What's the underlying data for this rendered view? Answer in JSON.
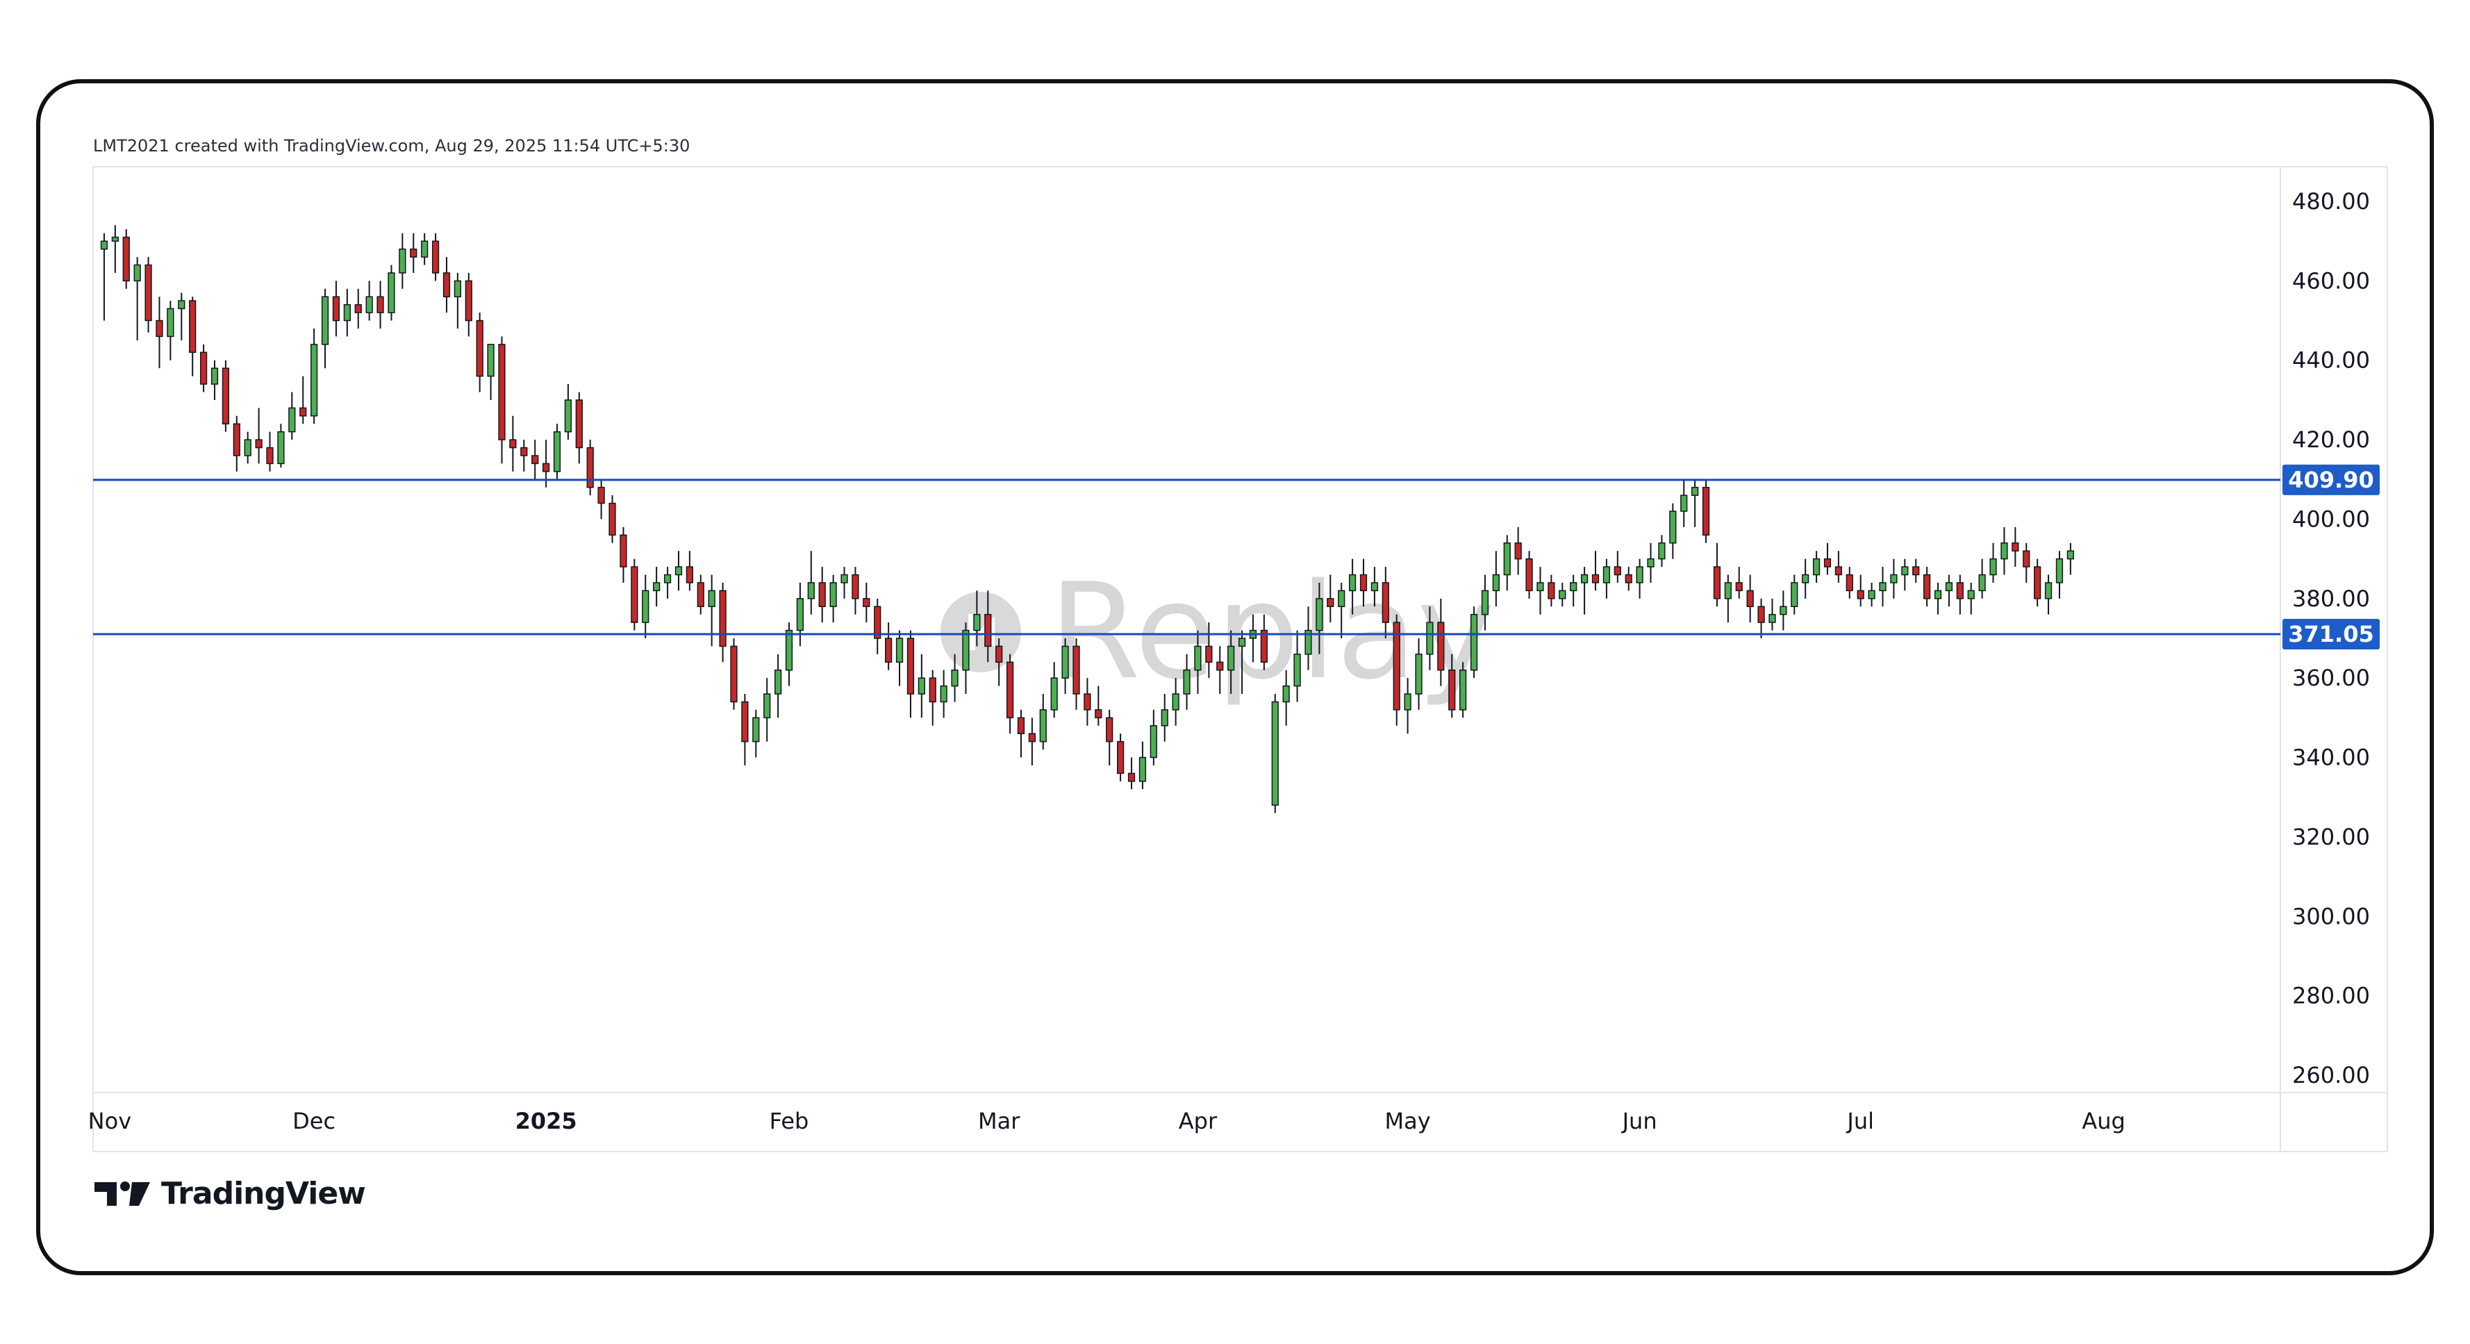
{
  "caption": "LMT2021 created with TradingView.com, Aug 29, 2025 11:54 UTC+5:30",
  "brand": {
    "name": "TradingView",
    "icon": "tradingview-logo-icon"
  },
  "watermark": {
    "text": "Replay",
    "icon": "replay-icon"
  },
  "chart_data": {
    "type": "candlestick",
    "symbol": "LMT",
    "ylim": [
      255,
      485
    ],
    "y_ticks": [
      "480.00",
      "460.00",
      "440.00",
      "420.00",
      "400.00",
      "380.00",
      "360.00",
      "340.00",
      "320.00",
      "300.00",
      "280.00",
      "260.00"
    ],
    "y_tick_values": [
      480,
      460,
      440,
      420,
      400,
      380,
      360,
      340,
      320,
      300,
      280,
      260
    ],
    "x_ticks": [
      {
        "label": "Nov",
        "index": 0.5,
        "bold": false
      },
      {
        "label": "Dec",
        "index": 19,
        "bold": false
      },
      {
        "label": "2025",
        "index": 40,
        "bold": true
      },
      {
        "label": "Feb",
        "index": 62,
        "bold": false
      },
      {
        "label": "Mar",
        "index": 81,
        "bold": false
      },
      {
        "label": "Apr",
        "index": 99,
        "bold": false
      },
      {
        "label": "May",
        "index": 118,
        "bold": false
      },
      {
        "label": "Jun",
        "index": 139,
        "bold": false
      },
      {
        "label": "Jul",
        "index": 159,
        "bold": false
      },
      {
        "label": "Aug",
        "index": 181,
        "bold": false
      }
    ],
    "x_slots": 198,
    "levels": [
      {
        "value": 409.9,
        "label": "409.90"
      },
      {
        "value": 371.05,
        "label": "371.05"
      }
    ],
    "up_color": "#4caf50",
    "down_color": "#c62828",
    "wick_color": "#131722",
    "level_color": "#1848b8",
    "label_bg": "#1e5cc8",
    "candles": [
      [
        468,
        472,
        450,
        470
      ],
      [
        470,
        474,
        462,
        471
      ],
      [
        471,
        473,
        458,
        460
      ],
      [
        460,
        466,
        445,
        464
      ],
      [
        464,
        466,
        447,
        450
      ],
      [
        450,
        456,
        438,
        446
      ],
      [
        446,
        455,
        440,
        453
      ],
      [
        453,
        457,
        445,
        455
      ],
      [
        455,
        456,
        436,
        442
      ],
      [
        442,
        444,
        432,
        434
      ],
      [
        434,
        440,
        430,
        438
      ],
      [
        438,
        440,
        422,
        424
      ],
      [
        424,
        426,
        412,
        416
      ],
      [
        416,
        422,
        414,
        420
      ],
      [
        420,
        428,
        414,
        418
      ],
      [
        418,
        422,
        412,
        414
      ],
      [
        414,
        424,
        413,
        422
      ],
      [
        422,
        432,
        420,
        428
      ],
      [
        428,
        436,
        424,
        426
      ],
      [
        426,
        448,
        424,
        444
      ],
      [
        444,
        458,
        438,
        456
      ],
      [
        456,
        460,
        446,
        450
      ],
      [
        450,
        458,
        446,
        454
      ],
      [
        454,
        458,
        448,
        452
      ],
      [
        452,
        460,
        450,
        456
      ],
      [
        456,
        460,
        448,
        452
      ],
      [
        452,
        464,
        450,
        462
      ],
      [
        462,
        472,
        458,
        468
      ],
      [
        468,
        472,
        462,
        466
      ],
      [
        466,
        472,
        464,
        470
      ],
      [
        470,
        472,
        460,
        462
      ],
      [
        462,
        466,
        452,
        456
      ],
      [
        456,
        462,
        448,
        460
      ],
      [
        460,
        462,
        446,
        450
      ],
      [
        450,
        452,
        432,
        436
      ],
      [
        436,
        444,
        430,
        444
      ],
      [
        444,
        446,
        414,
        420
      ],
      [
        420,
        426,
        412,
        418
      ],
      [
        418,
        420,
        412,
        416
      ],
      [
        416,
        420,
        410,
        414
      ],
      [
        414,
        420,
        408,
        412
      ],
      [
        412,
        424,
        410,
        422
      ],
      [
        422,
        434,
        420,
        430
      ],
      [
        430,
        432,
        414,
        418
      ],
      [
        418,
        420,
        406,
        408
      ],
      [
        408,
        410,
        400,
        404
      ],
      [
        404,
        406,
        394,
        396
      ],
      [
        396,
        398,
        384,
        388
      ],
      [
        388,
        390,
        372,
        374
      ],
      [
        374,
        386,
        370,
        382
      ],
      [
        382,
        388,
        378,
        384
      ],
      [
        384,
        388,
        380,
        386
      ],
      [
        386,
        392,
        382,
        388
      ],
      [
        388,
        392,
        382,
        384
      ],
      [
        384,
        386,
        376,
        378
      ],
      [
        378,
        386,
        368,
        382
      ],
      [
        382,
        384,
        364,
        368
      ],
      [
        368,
        370,
        352,
        354
      ],
      [
        354,
        356,
        338,
        344
      ],
      [
        344,
        352,
        340,
        350
      ],
      [
        350,
        360,
        344,
        356
      ],
      [
        356,
        366,
        350,
        362
      ],
      [
        362,
        374,
        358,
        372
      ],
      [
        372,
        384,
        368,
        380
      ],
      [
        380,
        392,
        376,
        384
      ],
      [
        384,
        388,
        374,
        378
      ],
      [
        378,
        386,
        374,
        384
      ],
      [
        384,
        388,
        380,
        386
      ],
      [
        386,
        388,
        376,
        380
      ],
      [
        380,
        384,
        374,
        378
      ],
      [
        378,
        380,
        366,
        370
      ],
      [
        370,
        374,
        362,
        364
      ],
      [
        364,
        372,
        358,
        370
      ],
      [
        370,
        372,
        350,
        356
      ],
      [
        356,
        366,
        350,
        360
      ],
      [
        360,
        362,
        348,
        354
      ],
      [
        354,
        362,
        350,
        358
      ],
      [
        358,
        366,
        354,
        362
      ],
      [
        362,
        374,
        356,
        372
      ],
      [
        372,
        382,
        368,
        376
      ],
      [
        376,
        382,
        364,
        368
      ],
      [
        368,
        370,
        358,
        364
      ],
      [
        364,
        366,
        346,
        350
      ],
      [
        350,
        352,
        340,
        346
      ],
      [
        346,
        350,
        338,
        344
      ],
      [
        344,
        356,
        342,
        352
      ],
      [
        352,
        364,
        350,
        360
      ],
      [
        360,
        370,
        356,
        368
      ],
      [
        368,
        370,
        352,
        356
      ],
      [
        356,
        360,
        348,
        352
      ],
      [
        352,
        358,
        348,
        350
      ],
      [
        350,
        352,
        338,
        344
      ],
      [
        344,
        346,
        334,
        336
      ],
      [
        336,
        340,
        332,
        334
      ],
      [
        334,
        344,
        332,
        340
      ],
      [
        340,
        352,
        338,
        348
      ],
      [
        348,
        356,
        344,
        352
      ],
      [
        352,
        360,
        348,
        356
      ],
      [
        356,
        366,
        352,
        362
      ],
      [
        362,
        372,
        356,
        368
      ],
      [
        368,
        374,
        360,
        364
      ],
      [
        364,
        368,
        356,
        362
      ],
      [
        362,
        372,
        356,
        368
      ],
      [
        368,
        372,
        356,
        370
      ],
      [
        370,
        376,
        364,
        372
      ],
      [
        372,
        376,
        362,
        364
      ],
      [
        328,
        356,
        326,
        354
      ],
      [
        354,
        362,
        348,
        358
      ],
      [
        358,
        372,
        354,
        366
      ],
      [
        366,
        378,
        362,
        372
      ],
      [
        372,
        384,
        366,
        380
      ],
      [
        380,
        386,
        374,
        378
      ],
      [
        378,
        384,
        370,
        382
      ],
      [
        382,
        390,
        376,
        386
      ],
      [
        386,
        390,
        378,
        382
      ],
      [
        382,
        388,
        378,
        384
      ],
      [
        384,
        388,
        370,
        374
      ],
      [
        374,
        376,
        348,
        352
      ],
      [
        352,
        360,
        346,
        356
      ],
      [
        356,
        370,
        352,
        366
      ],
      [
        366,
        378,
        362,
        374
      ],
      [
        374,
        380,
        358,
        362
      ],
      [
        362,
        366,
        350,
        352
      ],
      [
        352,
        364,
        350,
        362
      ],
      [
        362,
        378,
        360,
        376
      ],
      [
        376,
        386,
        372,
        382
      ],
      [
        382,
        392,
        378,
        386
      ],
      [
        386,
        396,
        382,
        394
      ],
      [
        394,
        398,
        386,
        390
      ],
      [
        390,
        392,
        380,
        382
      ],
      [
        382,
        388,
        376,
        384
      ],
      [
        384,
        386,
        378,
        380
      ],
      [
        380,
        384,
        378,
        382
      ],
      [
        382,
        386,
        378,
        384
      ],
      [
        384,
        388,
        376,
        386
      ],
      [
        386,
        392,
        382,
        384
      ],
      [
        384,
        390,
        380,
        388
      ],
      [
        388,
        392,
        384,
        386
      ],
      [
        386,
        388,
        382,
        384
      ],
      [
        384,
        390,
        380,
        388
      ],
      [
        388,
        394,
        384,
        390
      ],
      [
        390,
        396,
        388,
        394
      ],
      [
        394,
        404,
        390,
        402
      ],
      [
        402,
        410,
        398,
        406
      ],
      [
        406,
        410,
        398,
        408
      ],
      [
        408,
        410,
        394,
        396
      ],
      [
        388,
        394,
        378,
        380
      ],
      [
        380,
        386,
        374,
        384
      ],
      [
        384,
        388,
        380,
        382
      ],
      [
        382,
        386,
        374,
        378
      ],
      [
        378,
        380,
        370,
        374
      ],
      [
        374,
        380,
        372,
        376
      ],
      [
        376,
        382,
        372,
        378
      ],
      [
        378,
        386,
        376,
        384
      ],
      [
        384,
        390,
        380,
        386
      ],
      [
        386,
        392,
        384,
        390
      ],
      [
        390,
        394,
        386,
        388
      ],
      [
        388,
        392,
        384,
        386
      ],
      [
        386,
        388,
        380,
        382
      ],
      [
        382,
        386,
        378,
        380
      ],
      [
        380,
        384,
        378,
        382
      ],
      [
        382,
        388,
        378,
        384
      ],
      [
        384,
        390,
        380,
        386
      ],
      [
        386,
        390,
        382,
        388
      ],
      [
        388,
        390,
        384,
        386
      ],
      [
        386,
        388,
        378,
        380
      ],
      [
        380,
        384,
        376,
        382
      ],
      [
        382,
        386,
        378,
        384
      ],
      [
        384,
        386,
        376,
        380
      ],
      [
        380,
        384,
        376,
        382
      ],
      [
        382,
        390,
        380,
        386
      ],
      [
        386,
        394,
        384,
        390
      ],
      [
        390,
        398,
        386,
        394
      ],
      [
        394,
        398,
        388,
        392
      ],
      [
        392,
        394,
        384,
        388
      ],
      [
        388,
        390,
        378,
        380
      ],
      [
        380,
        386,
        376,
        384
      ],
      [
        384,
        392,
        380,
        390
      ],
      [
        390,
        394,
        386,
        392
      ]
    ]
  }
}
